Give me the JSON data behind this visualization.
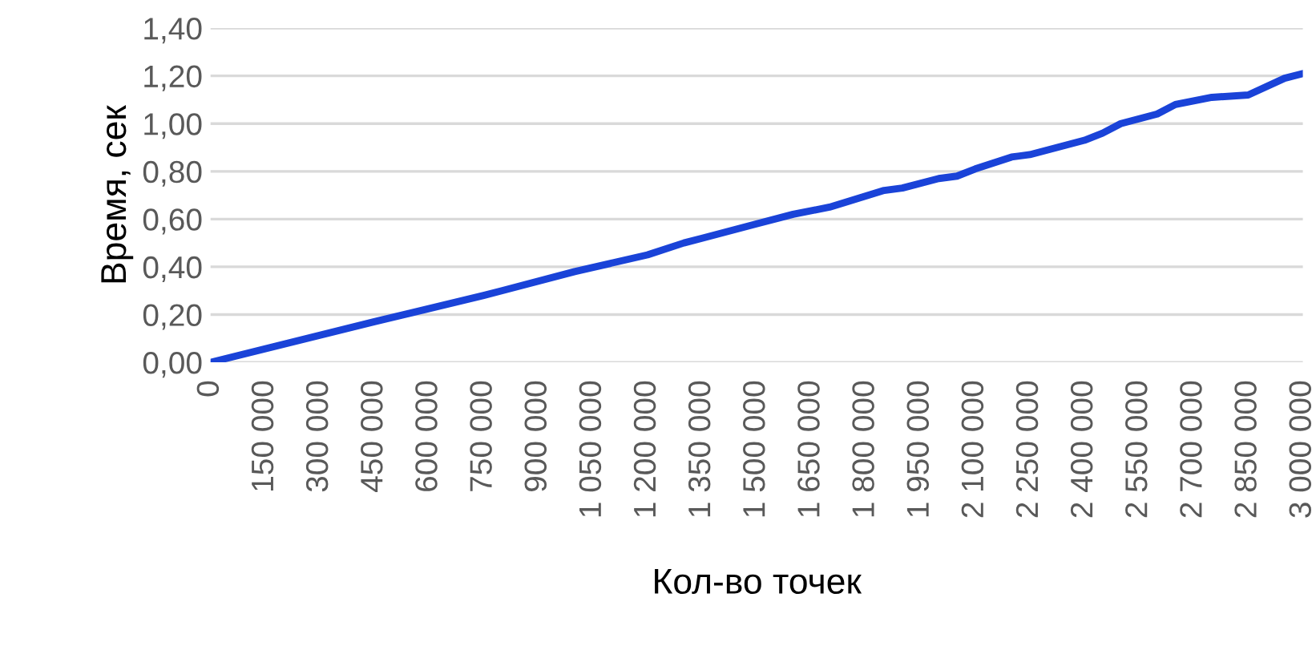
{
  "chart_data": {
    "type": "line",
    "xlabel": "Кол-во точек",
    "ylabel": "Время, сек",
    "x": [
      0,
      450000,
      750000,
      800000,
      1000000,
      1200000,
      1300000,
      1350000,
      1500000,
      1600000,
      1700000,
      1850000,
      1900000,
      2000000,
      2050000,
      2100000,
      2200000,
      2250000,
      2350000,
      2400000,
      2450000,
      2500000,
      2600000,
      2650000,
      2750000,
      2850000,
      2950000,
      3000000
    ],
    "series": [
      {
        "color": "#1a43d8",
        "values": [
          0.0,
          0.17,
          0.28,
          0.3,
          0.38,
          0.45,
          0.5,
          0.52,
          0.58,
          0.62,
          0.65,
          0.72,
          0.73,
          0.77,
          0.78,
          0.81,
          0.86,
          0.87,
          0.91,
          0.93,
          0.96,
          1.0,
          1.04,
          1.08,
          1.11,
          1.12,
          1.19,
          1.21
        ]
      }
    ],
    "xlim": [
      0,
      3000000
    ],
    "xticks": [
      {
        "value": 0,
        "label": "0"
      },
      {
        "value": 150000,
        "label": "150 000"
      },
      {
        "value": 300000,
        "label": "300 000"
      },
      {
        "value": 450000,
        "label": "450 000"
      },
      {
        "value": 600000,
        "label": "600 000"
      },
      {
        "value": 750000,
        "label": "750 000"
      },
      {
        "value": 900000,
        "label": "900 000"
      },
      {
        "value": 1050000,
        "label": "1 050 000"
      },
      {
        "value": 1200000,
        "label": "1 200 000"
      },
      {
        "value": 1350000,
        "label": "1 350 000"
      },
      {
        "value": 1500000,
        "label": "1 500 000"
      },
      {
        "value": 1650000,
        "label": "1 650 000"
      },
      {
        "value": 1800000,
        "label": "1 800 000"
      },
      {
        "value": 1950000,
        "label": "1 950 000"
      },
      {
        "value": 2100000,
        "label": "2 100 000"
      },
      {
        "value": 2250000,
        "label": "2 250 000"
      },
      {
        "value": 2400000,
        "label": "2 400 000"
      },
      {
        "value": 2550000,
        "label": "2 550 000"
      },
      {
        "value": 2700000,
        "label": "2 700 000"
      },
      {
        "value": 2850000,
        "label": "2 850 000"
      },
      {
        "value": 3000000,
        "label": "3 000 000"
      }
    ],
    "ylim": [
      0,
      1.4
    ],
    "yticks": [
      {
        "value": 0,
        "label": "0,00"
      },
      {
        "value": 0.2,
        "label": "0,20"
      },
      {
        "value": 0.4,
        "label": "0,40"
      },
      {
        "value": 0.6,
        "label": "0,60"
      },
      {
        "value": 0.8,
        "label": "0,80"
      },
      {
        "value": 1.0,
        "label": "1,00"
      },
      {
        "value": 1.2,
        "label": "1,20"
      },
      {
        "value": 1.4,
        "label": "1,40"
      }
    ],
    "grid": "y",
    "legend": false,
    "marker": "none",
    "line_style": "solid"
  }
}
